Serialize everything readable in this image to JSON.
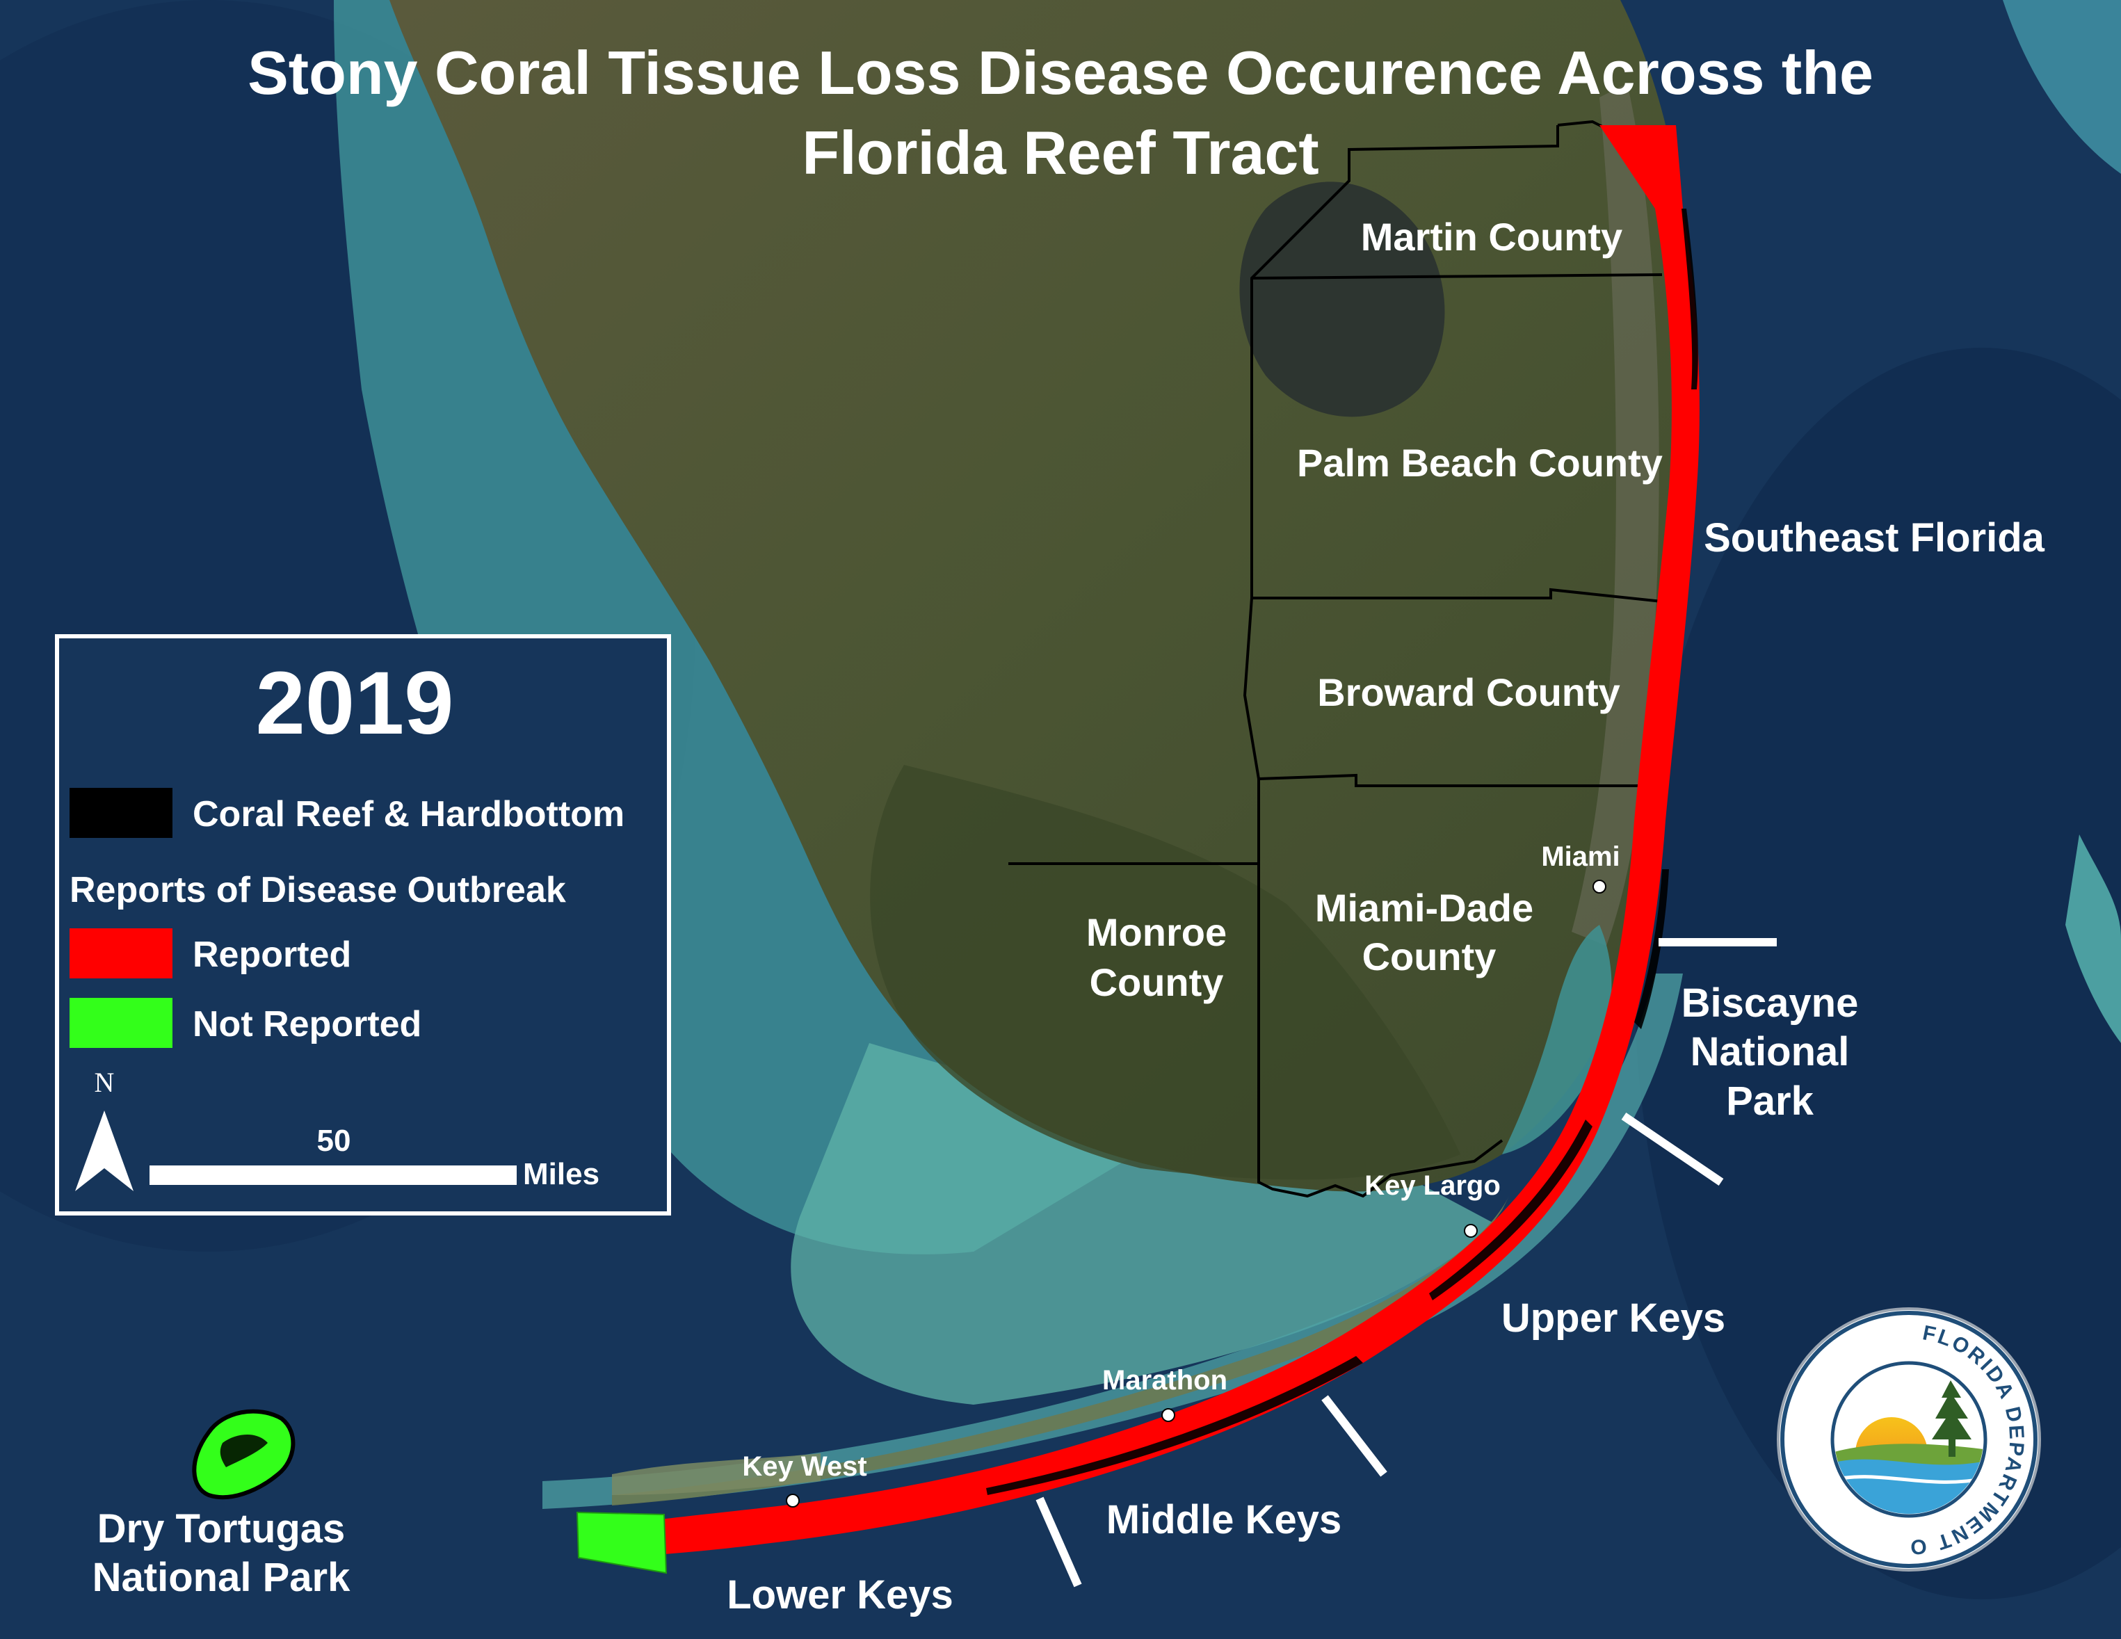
{
  "title": {
    "line1": "Stony Coral Tissue Loss Disease Occurence Across the",
    "line2": "Florida Reef Tract"
  },
  "legend": {
    "year": "2019",
    "reef_label": "Coral Reef & Hardbottom",
    "section_heading": "Reports of Disease Outbreak",
    "reported_label": "Reported",
    "not_reported_label": "Not Reported",
    "north_label": "N",
    "scale_value": "50",
    "scale_unit": "Miles",
    "colors": {
      "reef": "#000000",
      "reported": "#ff0000",
      "not_reported": "#33ff1a"
    }
  },
  "counties": {
    "martin": "Martin County",
    "palm_beach": "Palm Beach County",
    "broward": "Broward County",
    "miami_dade_1": "Miami-Dade",
    "miami_dade_2": "County",
    "monroe_1": "Monroe",
    "monroe_2": "County"
  },
  "regions": {
    "southeast_florida": "Southeast Florida",
    "biscayne_1": "Biscayne",
    "biscayne_2": "National",
    "biscayne_3": "Park",
    "upper_keys": "Upper Keys",
    "middle_keys": "Middle Keys",
    "lower_keys": "Lower Keys",
    "dry_tortugas_1": "Dry Tortugas",
    "dry_tortugas_2": "National Park"
  },
  "cities": {
    "miami": "Miami",
    "key_largo": "Key Largo",
    "marathon": "Marathon",
    "key_west": "Key West"
  },
  "logo": {
    "ring_text": "FLORIDA DEPARTMENT OF ENVIRONMENTAL PROTECTION"
  },
  "colors": {
    "ocean": "#16355a",
    "land": "#4a5234",
    "shallow_water": "#4fa3a5"
  }
}
